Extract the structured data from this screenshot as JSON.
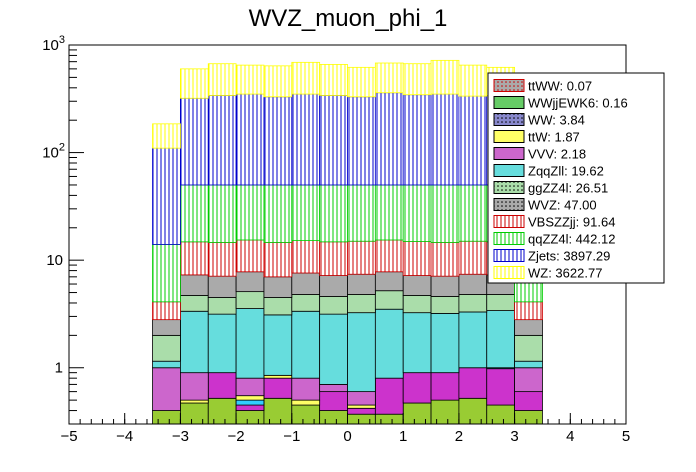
{
  "chart_data": {
    "type": "bar",
    "subtype": "stacked-histogram",
    "title": "WVZ_muon_phi_1",
    "xlabel": "",
    "ylabel": "",
    "xlim": [
      -5,
      5
    ],
    "ylim": [
      0.3,
      1000
    ],
    "yscale": "log",
    "x_ticks": [
      -5,
      -4,
      -3,
      -2,
      -1,
      0,
      1,
      2,
      3,
      4,
      5
    ],
    "x_tick_labels": [
      "−5",
      "−4",
      "−3",
      "−2",
      "−1",
      "0",
      "1",
      "2",
      "3",
      "4",
      "5"
    ],
    "y_tick_labels": [
      {
        "value": 1,
        "base": "1",
        "exp": ""
      },
      {
        "value": 10,
        "base": "10",
        "exp": ""
      },
      {
        "value": 100,
        "base": "10",
        "exp": "2"
      },
      {
        "value": 1000,
        "base": "10",
        "exp": "3"
      }
    ],
    "bin_edges": [
      -3.5,
      -3.0,
      -2.5,
      -2.0,
      -1.5,
      -1.0,
      -0.5,
      0.0,
      0.5,
      1.0,
      1.5,
      2.0,
      2.5,
      3.0,
      3.5
    ],
    "stack_totals": [
      [
        0.4,
        0.47,
        0.52,
        0.4,
        0.52,
        0.45,
        0.4,
        0.37,
        0.37,
        0.47,
        0.5,
        0.52,
        0.45,
        0.4
      ],
      [
        0.4,
        0.47,
        0.9,
        0.45,
        0.8,
        0.45,
        0.6,
        0.42,
        0.8,
        0.9,
        0.9,
        1.0,
        0.98,
        0.6
      ],
      [
        0.4,
        0.47,
        0.9,
        0.5,
        0.8,
        0.45,
        0.6,
        0.42,
        0.8,
        0.9,
        0.9,
        1.0,
        1.0,
        0.6
      ],
      [
        0.4,
        0.5,
        0.9,
        0.55,
        0.85,
        0.5,
        0.6,
        0.45,
        0.8,
        0.9,
        0.9,
        1.0,
        1.0,
        0.6
      ],
      [
        1.0,
        0.9,
        0.9,
        0.8,
        0.85,
        0.8,
        0.7,
        0.6,
        0.8,
        0.9,
        0.9,
        1.0,
        1.0,
        1.0
      ],
      [
        1.15,
        3.35,
        3.15,
        3.55,
        3.1,
        3.35,
        3.15,
        3.25,
        3.5,
        3.25,
        3.2,
        3.3,
        3.4,
        1.15
      ],
      [
        2.0,
        4.7,
        4.5,
        5.1,
        4.5,
        4.8,
        4.6,
        4.8,
        5.2,
        4.7,
        4.6,
        4.8,
        4.8,
        2.0
      ],
      [
        2.8,
        7.3,
        7.1,
        7.8,
        7.0,
        7.6,
        7.2,
        7.4,
        7.8,
        7.2,
        7.1,
        7.4,
        7.3,
        2.8
      ],
      [
        4.1,
        14.8,
        14.6,
        15.4,
        14.6,
        15.2,
        14.8,
        15.0,
        15.4,
        14.9,
        14.6,
        15.0,
        14.8,
        4.1
      ],
      [
        14.0,
        50.0,
        50.0,
        50.0,
        50.0,
        50.0,
        50.0,
        50.0,
        50.0,
        50.0,
        50.0,
        50.0,
        50.0,
        14.0
      ],
      [
        110,
        320,
        340,
        350,
        330,
        350,
        340,
        330,
        360,
        345,
        350,
        335,
        340,
        110
      ],
      [
        185,
        600,
        670,
        650,
        640,
        690,
        660,
        620,
        680,
        670,
        720,
        650,
        620,
        185
      ]
    ],
    "series": [
      {
        "name": "qqZZ4l",
        "legend": "qqZZ4l: 442.12",
        "fill": "#ffffff",
        "stroke": "#00cc00",
        "pattern": "vline"
      },
      {
        "name": "Zjets",
        "legend": "Zjets: 3897.29",
        "fill": "#ffffff",
        "stroke": "#0000cc",
        "pattern": "vline"
      },
      {
        "name": "WZ",
        "legend": "WZ: 3622.77",
        "fill": "#ffffff",
        "stroke": "#ffff00",
        "pattern": "vline"
      }
    ],
    "layers": [
      {
        "name": "ttWW",
        "legend": "ttWW: 0.07",
        "fill": "#99cc33",
        "stroke": "#000000",
        "pattern": "none"
      },
      {
        "name": "WWjjEWK6",
        "legend": "WWjjEWK6: 0.16",
        "fill": "#cc33cc",
        "stroke": "#000000",
        "pattern": "none"
      },
      {
        "name": "WW",
        "legend": "WW: 3.84",
        "fill": "#33ccff",
        "stroke": "#000000",
        "pattern": "none"
      },
      {
        "name": "ttW",
        "legend": "ttW: 1.87",
        "fill": "#ffff66",
        "stroke": "#000000",
        "pattern": "none"
      },
      {
        "name": "VVV",
        "legend": "VVV: 2.18",
        "fill": "#cc66cc",
        "stroke": "#000000",
        "pattern": "none"
      },
      {
        "name": "ZqqZll",
        "legend": "ZqqZll: 19.62",
        "fill": "#66dddd",
        "stroke": "#000000",
        "pattern": "none"
      },
      {
        "name": "ggZZ4l",
        "legend": "ggZZ4l: 26.51",
        "fill": "#aaddaa",
        "stroke": "#000000",
        "pattern": "none"
      },
      {
        "name": "WVZ",
        "legend": "WVZ: 47.00",
        "fill": "#aaaaaa",
        "stroke": "#000000",
        "pattern": "none"
      },
      {
        "name": "VBSZZjj",
        "legend": "VBSZZjj: 91.64",
        "fill": "#ffffff",
        "stroke": "#cc0000",
        "pattern": "vline"
      },
      {
        "name": "qqZZ4l",
        "legend": "qqZZ4l: 442.12",
        "fill": "#ffffff",
        "stroke": "#00cc00",
        "pattern": "vline"
      },
      {
        "name": "Zjets",
        "legend": "Zjets: 3897.29",
        "fill": "#ffffff",
        "stroke": "#0000cc",
        "pattern": "vline"
      },
      {
        "name": "WZ",
        "legend": "WZ: 3622.77",
        "fill": "#ffffff",
        "stroke": "#ffff00",
        "pattern": "vline"
      }
    ],
    "legend": {
      "placement": "top-right",
      "entries": [
        {
          "label": "ttWW: 0.07",
          "fill": "#aaaaaa",
          "stroke": "#cc0000",
          "pattern": "dots"
        },
        {
          "label": "WWjjEWK6: 0.16",
          "fill": "#66cc66",
          "stroke": "#000000",
          "pattern": "none"
        },
        {
          "label": "WW: 3.84",
          "fill": "#8888cc",
          "stroke": "#000000",
          "pattern": "dots"
        },
        {
          "label": "ttW: 1.87",
          "fill": "#ffff66",
          "stroke": "#000000",
          "pattern": "none"
        },
        {
          "label": "VVV: 2.18",
          "fill": "#cc66cc",
          "stroke": "#000000",
          "pattern": "none"
        },
        {
          "label": "ZqqZll: 19.62",
          "fill": "#66dddd",
          "stroke": "#000000",
          "pattern": "none"
        },
        {
          "label": "ggZZ4l: 26.51",
          "fill": "#aaddaa",
          "stroke": "#000000",
          "pattern": "dots"
        },
        {
          "label": "WVZ: 47.00",
          "fill": "#aaaaaa",
          "stroke": "#000000",
          "pattern": "dots"
        },
        {
          "label": "VBSZZjj: 91.64",
          "fill": "#ffffff",
          "stroke": "#cc0000",
          "pattern": "vline"
        },
        {
          "label": "qqZZ4l: 442.12",
          "fill": "#ffffff",
          "stroke": "#00cc00",
          "pattern": "vline"
        },
        {
          "label": "Zjets: 3897.29",
          "fill": "#ffffff",
          "stroke": "#0000cc",
          "pattern": "vline"
        },
        {
          "label": "WZ: 3622.77",
          "fill": "#ffffff",
          "stroke": "#ffff00",
          "pattern": "vline"
        }
      ]
    },
    "grid": false
  }
}
